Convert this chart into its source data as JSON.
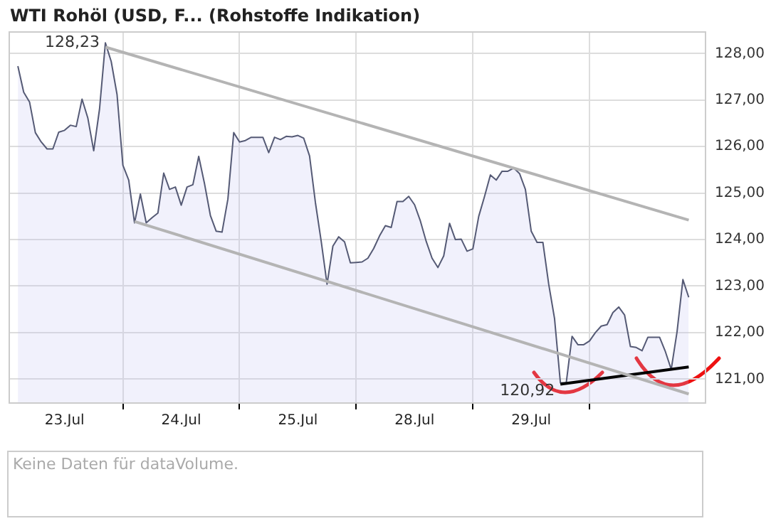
{
  "chart_data": {
    "type": "area",
    "title": "WTI Rohöl (USD, F... (Rohstoffe Indikation)",
    "categories": [
      null,
      null,
      null,
      null,
      null,
      null,
      null,
      null,
      "23.Jul",
      null,
      null,
      null,
      null,
      null,
      null,
      null,
      null,
      null,
      null,
      null,
      null,
      null,
      null,
      null,
      null,
      null,
      null,
      null,
      "24.Jul",
      null,
      null,
      null,
      null,
      null,
      null,
      null,
      null,
      null,
      null,
      null,
      null,
      null,
      null,
      null,
      null,
      null,
      null,
      null,
      "25.Jul",
      null,
      null,
      null,
      null,
      null,
      null,
      null,
      null,
      null,
      null,
      null,
      null,
      null,
      null,
      null,
      null,
      null,
      null,
      null,
      "28.Jul",
      null,
      null,
      null,
      null,
      null,
      null,
      null,
      null,
      null,
      null,
      null,
      null,
      null,
      null,
      null,
      null,
      null,
      null,
      null,
      "29.Jul",
      null,
      null,
      null,
      null,
      null,
      null,
      null,
      null,
      null,
      null,
      null,
      null,
      null,
      null,
      null,
      null,
      null,
      null,
      null,
      null,
      null,
      null,
      null,
      null,
      null,
      null,
      null
    ],
    "ylim": [
      120.47,
      128.48
    ],
    "yticks": [
      {
        "value": 121,
        "label": "121,00"
      },
      {
        "value": 122,
        "label": "122,00"
      },
      {
        "value": 123,
        "label": "123,00"
      },
      {
        "value": 124,
        "label": "124,00"
      },
      {
        "value": 125,
        "label": "125,00"
      },
      {
        "value": 126,
        "label": "126,00"
      },
      {
        "value": 127,
        "label": "127,00"
      },
      {
        "value": 128,
        "label": "128,00"
      }
    ],
    "grid": true,
    "legend": false,
    "marker": "none",
    "line_style": "solid",
    "annotations": [
      "Keine Daten für dataVolume."
    ],
    "series": [
      {
        "type": "area",
        "color": "#555a75",
        "values": [
          127.73,
          127.17,
          126.96,
          126.3,
          126.1,
          125.95,
          125.95,
          126.31,
          126.35,
          126.46,
          126.43,
          127.02,
          126.61,
          125.91,
          126.81,
          128.23,
          127.83,
          127.12,
          125.6,
          125.28,
          124.36,
          124.98,
          124.36,
          124.47,
          124.57,
          125.43,
          125.08,
          125.13,
          124.74,
          125.13,
          125.18,
          125.79,
          125.2,
          124.52,
          124.18,
          124.16,
          124.87,
          126.3,
          126.1,
          126.13,
          126.2,
          126.2,
          126.2,
          125.87,
          126.2,
          126.15,
          126.22,
          126.21,
          126.24,
          126.18,
          125.8,
          124.8,
          123.96,
          123.04,
          123.86,
          124.06,
          123.95,
          123.5,
          123.51,
          123.52,
          123.6,
          123.81,
          124.08,
          124.3,
          124.26,
          124.82,
          124.82,
          124.93,
          124.75,
          124.4,
          123.96,
          123.6,
          123.4,
          123.65,
          124.35,
          124,
          124.01,
          123.75,
          123.8,
          124.5,
          124.93,
          125.39,
          125.28,
          125.47,
          125.47,
          125.54,
          125.42,
          125.08,
          124.18,
          123.94,
          123.94,
          123.04,
          122.3,
          120.92,
          120.92,
          121.92,
          121.74,
          121.74,
          121.82,
          122,
          122.14,
          122.17,
          122.43,
          122.55,
          122.38,
          121.7,
          121.68,
          121.61,
          121.9,
          121.9,
          121.9,
          121.59,
          121.21,
          122.02,
          123.14,
          122.76
        ],
        "value_labels": [
          null,
          null,
          null,
          null,
          null,
          null,
          null,
          null,
          null,
          null,
          null,
          null,
          null,
          null,
          null,
          "128,23",
          null,
          null,
          null,
          null,
          null,
          null,
          null,
          null,
          null,
          null,
          null,
          null,
          null,
          null,
          null,
          null,
          null,
          null,
          null,
          null,
          null,
          null,
          null,
          null,
          null,
          null,
          null,
          null,
          null,
          null,
          null,
          null,
          null,
          null,
          null,
          null,
          null,
          null,
          null,
          null,
          null,
          null,
          null,
          null,
          null,
          null,
          null,
          null,
          null,
          null,
          null,
          null,
          null,
          null,
          null,
          null,
          null,
          null,
          null,
          null,
          null,
          null,
          null,
          null,
          null,
          null,
          null,
          null,
          null,
          null,
          null,
          null,
          null,
          null,
          null,
          null,
          null,
          "120,92",
          null,
          null,
          null,
          null,
          null,
          null,
          null,
          null,
          null,
          null,
          null,
          null,
          null,
          null,
          null,
          null,
          null,
          null,
          null,
          null,
          null,
          null
        ]
      },
      {
        "type": "line",
        "color": "#b4b4b4",
        "values": [
          null,
          null,
          null,
          null,
          null,
          null,
          null,
          null,
          null,
          null,
          null,
          null,
          null,
          null,
          null,
          128.14,
          null,
          null,
          null,
          null,
          null,
          null,
          null,
          null,
          null,
          null,
          null,
          null,
          null,
          null,
          null,
          null,
          null,
          null,
          null,
          null,
          null,
          null,
          null,
          null,
          null,
          null,
          null,
          null,
          null,
          null,
          null,
          null,
          null,
          null,
          null,
          null,
          null,
          null,
          null,
          null,
          null,
          null,
          null,
          null,
          null,
          null,
          null,
          null,
          null,
          null,
          null,
          null,
          null,
          null,
          null,
          null,
          null,
          null,
          null,
          null,
          null,
          null,
          null,
          null,
          null,
          null,
          null,
          null,
          null,
          null,
          null,
          null,
          null,
          null,
          null,
          null,
          null,
          null,
          null,
          null,
          null,
          null,
          null,
          null,
          null,
          null,
          null,
          null,
          null,
          null,
          null,
          null,
          null,
          null,
          null,
          null,
          null,
          null,
          null,
          124.42
        ]
      },
      {
        "type": "line",
        "color": "#b4b4b4",
        "values": [
          null,
          null,
          null,
          null,
          null,
          null,
          null,
          null,
          null,
          null,
          null,
          null,
          null,
          null,
          null,
          null,
          null,
          null,
          null,
          null,
          124.39,
          null,
          null,
          null,
          null,
          null,
          null,
          null,
          null,
          null,
          null,
          null,
          null,
          null,
          null,
          null,
          null,
          null,
          null,
          null,
          null,
          null,
          null,
          null,
          null,
          null,
          null,
          null,
          null,
          null,
          null,
          null,
          null,
          null,
          null,
          null,
          null,
          null,
          null,
          null,
          null,
          null,
          null,
          null,
          null,
          null,
          null,
          null,
          null,
          null,
          null,
          null,
          null,
          null,
          null,
          null,
          null,
          null,
          null,
          null,
          null,
          null,
          null,
          null,
          null,
          null,
          null,
          null,
          null,
          null,
          null,
          null,
          null,
          null,
          null,
          null,
          null,
          null,
          null,
          null,
          null,
          null,
          null,
          null,
          null,
          null,
          null,
          null,
          null,
          null,
          null,
          null,
          null,
          null,
          null,
          120.68
        ]
      },
      {
        "type": "line",
        "color": "#000000",
        "values": [
          null,
          null,
          null,
          null,
          null,
          null,
          null,
          null,
          null,
          null,
          null,
          null,
          null,
          null,
          null,
          null,
          null,
          null,
          null,
          null,
          null,
          null,
          null,
          null,
          null,
          null,
          null,
          null,
          null,
          null,
          null,
          null,
          null,
          null,
          null,
          null,
          null,
          null,
          null,
          null,
          null,
          null,
          null,
          null,
          null,
          null,
          null,
          null,
          null,
          null,
          null,
          null,
          null,
          null,
          null,
          null,
          null,
          null,
          null,
          null,
          null,
          null,
          null,
          null,
          null,
          null,
          null,
          null,
          null,
          null,
          null,
          null,
          null,
          null,
          null,
          null,
          null,
          null,
          null,
          null,
          null,
          null,
          null,
          null,
          null,
          null,
          null,
          null,
          null,
          null,
          null,
          null,
          null,
          120.89,
          null,
          null,
          null,
          null,
          null,
          null,
          null,
          null,
          null,
          null,
          null,
          null,
          null,
          null,
          null,
          null,
          null,
          null,
          null,
          null,
          null,
          121.26
        ]
      }
    ]
  }
}
